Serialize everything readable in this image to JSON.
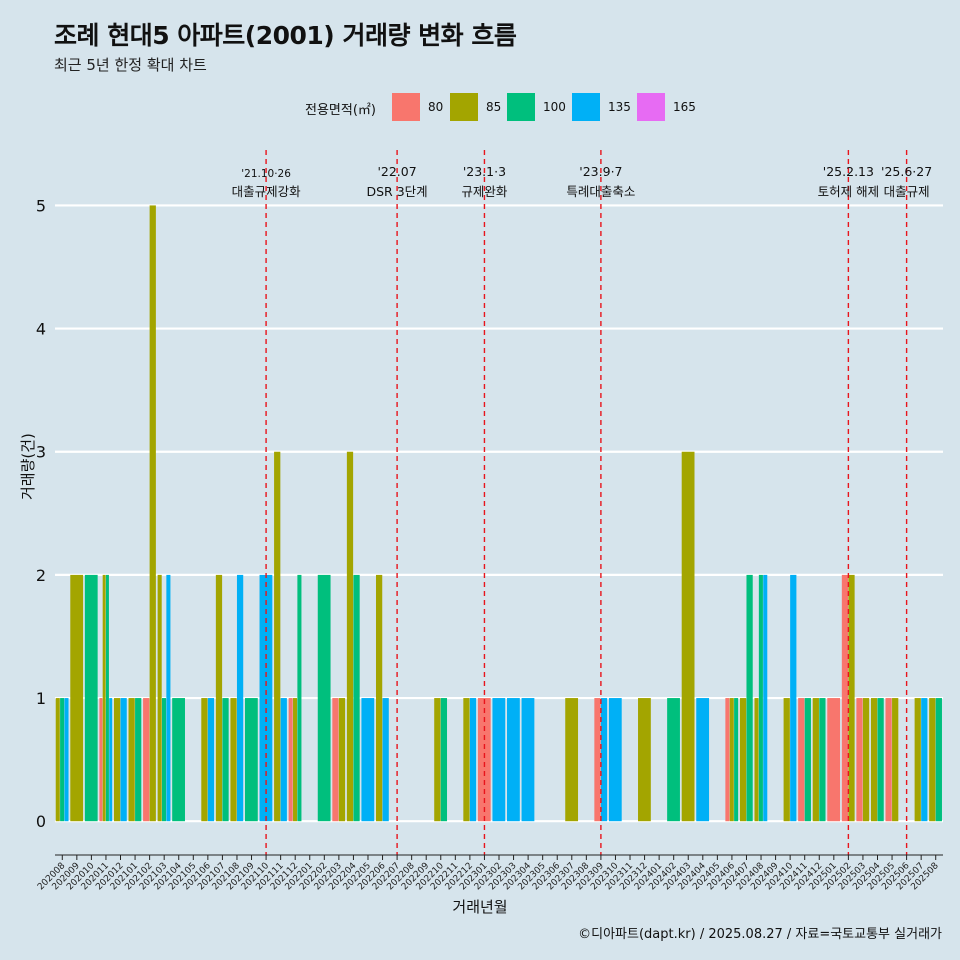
{
  "title": "조례 현대5 아파트(2001) 거래량 변화 흐름",
  "subtitle": "최근 5년 한정 확대 차트",
  "legend": {
    "title": "전용면적(㎡)",
    "items": [
      {
        "label": "80",
        "color": "#F8766D"
      },
      {
        "label": "85",
        "color": "#A3A500"
      },
      {
        "label": "100",
        "color": "#00BF7D"
      },
      {
        "label": "135",
        "color": "#00B0F6"
      },
      {
        "label": "165",
        "color": "#E76BF3"
      }
    ]
  },
  "caption": "©디아파트(dapt.kr) / 2025.08.27 / 자료=국토교통부 실거래가",
  "chart_data": {
    "type": "bar",
    "title": "조례 현대5 아파트(2001) 거래량 변화 흐름",
    "subtitle": "최근 5년 한정 확대 차트",
    "xlabel": "거래년월",
    "ylabel": "거래량(건)",
    "ylim": [
      -0.25,
      5.45
    ],
    "yticks": [
      0,
      1,
      2,
      3,
      4,
      5
    ],
    "grid": true,
    "legend_position": "top",
    "categories": [
      "202008",
      "202009",
      "202010",
      "202011",
      "202012",
      "202101",
      "202102",
      "202103",
      "202104",
      "202105",
      "202106",
      "202107",
      "202108",
      "202109",
      "202110",
      "202111",
      "202112",
      "202201",
      "202202",
      "202203",
      "202204",
      "202205",
      "202206",
      "202207",
      "202208",
      "202209",
      "202210",
      "202211",
      "202212",
      "202301",
      "202302",
      "202303",
      "202304",
      "202305",
      "202306",
      "202307",
      "202308",
      "202309",
      "202310",
      "202311",
      "202312",
      "202401",
      "202402",
      "202403",
      "202404",
      "202405",
      "202406",
      "202407",
      "202408",
      "202409",
      "202410",
      "202411",
      "202412",
      "202501",
      "202502",
      "202503",
      "202504",
      "202505",
      "202506",
      "202507",
      "202508"
    ],
    "series": [
      {
        "name": "80",
        "color": "#F8766D",
        "values": [
          0,
          0,
          0,
          1,
          0,
          0,
          1,
          0,
          0,
          0,
          0,
          0,
          0,
          0,
          0,
          0,
          1,
          0,
          0,
          1,
          0,
          0,
          0,
          0,
          0,
          0,
          0,
          0,
          0,
          1,
          0,
          0,
          0,
          0,
          0,
          0,
          0,
          1,
          0,
          0,
          0,
          0,
          0,
          0,
          0,
          0,
          1,
          0,
          0,
          0,
          0,
          1,
          0,
          1,
          2,
          1,
          0,
          1,
          0,
          0,
          0
        ]
      },
      {
        "name": "85",
        "color": "#A3A500",
        "values": [
          1,
          2,
          0,
          2,
          1,
          1,
          5,
          2,
          0,
          0,
          1,
          2,
          1,
          0,
          0,
          3,
          1,
          0,
          0,
          1,
          3,
          0,
          2,
          0,
          0,
          0,
          1,
          0,
          1,
          0,
          0,
          0,
          0,
          0,
          0,
          1,
          0,
          0,
          0,
          0,
          1,
          0,
          0,
          3,
          0,
          0,
          1,
          1,
          1,
          0,
          1,
          0,
          1,
          0,
          2,
          1,
          1,
          1,
          0,
          1,
          1
        ]
      },
      {
        "name": "100",
        "color": "#00BF7D",
        "values": [
          1,
          0,
          2,
          2,
          0,
          1,
          0,
          1,
          1,
          0,
          0,
          1,
          0,
          1,
          0,
          0,
          2,
          0,
          2,
          0,
          2,
          0,
          0,
          0,
          0,
          0,
          1,
          0,
          0,
          0,
          0,
          0,
          0,
          0,
          0,
          0,
          0,
          0,
          0,
          0,
          0,
          0,
          1,
          0,
          0,
          0,
          1,
          2,
          2,
          0,
          0,
          1,
          1,
          0,
          0,
          0,
          1,
          0,
          0,
          0,
          1
        ]
      },
      {
        "name": "135",
        "color": "#00B0F6",
        "values": [
          1,
          0,
          0,
          1,
          1,
          0,
          0,
          2,
          0,
          0,
          1,
          0,
          2,
          0,
          2,
          1,
          0,
          0,
          0,
          0,
          0,
          1,
          1,
          0,
          0,
          0,
          0,
          0,
          1,
          0,
          1,
          1,
          1,
          0,
          0,
          0,
          0,
          1,
          1,
          0,
          0,
          0,
          0,
          0,
          1,
          0,
          0,
          0,
          2,
          0,
          2,
          0,
          0,
          0,
          0,
          0,
          0,
          0,
          0,
          1,
          0
        ]
      },
      {
        "name": "165",
        "color": "#E76BF3",
        "values": [
          0,
          0,
          0,
          0,
          0,
          0,
          0,
          0,
          0,
          0,
          0,
          0,
          0,
          0,
          0,
          0,
          0,
          0,
          0,
          0,
          0,
          0,
          0,
          0,
          0,
          0,
          0,
          0,
          0,
          0,
          0,
          0,
          0,
          0,
          0,
          0,
          0,
          0,
          0,
          0,
          0,
          0,
          0,
          0,
          0,
          0,
          0,
          0,
          0,
          0,
          0,
          0,
          0,
          0,
          0,
          0,
          0,
          0,
          0,
          0,
          0
        ]
      }
    ],
    "annotations": [
      {
        "date": "202110",
        "label_top": "'21.10·26",
        "label_bottom": "대출규제강화"
      },
      {
        "date": "202207",
        "label_top": "'22.07",
        "label_bottom": "DSR 3단계"
      },
      {
        "date": "202301",
        "label_top": "'23.1·3",
        "label_bottom": "규제완화"
      },
      {
        "date": "202309",
        "label_top": "'23.9·7",
        "label_bottom": "특례대출축소"
      },
      {
        "date": "202502",
        "label_top": "'25.2.13",
        "label_bottom": "토허제 해제"
      },
      {
        "date": "202506",
        "label_top": "'25.6·27",
        "label_bottom": "대출규제"
      }
    ]
  }
}
